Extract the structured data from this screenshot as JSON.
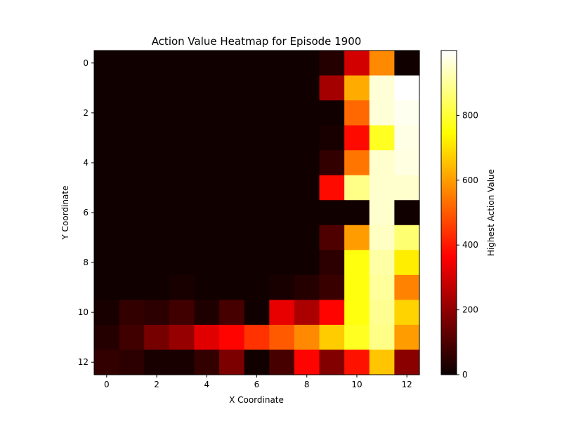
{
  "chart_data": {
    "type": "heatmap",
    "title": "Action Value Heatmap for Episode 1900",
    "xlabel": "X Coordinate",
    "ylabel": "Y Coordinate",
    "colorbar_label": "Highest Action Value",
    "colormap": "hot",
    "vmin": 0,
    "vmax": 1000,
    "x_ticks": [
      0,
      2,
      4,
      6,
      8,
      10,
      12
    ],
    "y_ticks": [
      0,
      2,
      4,
      6,
      8,
      10,
      12
    ],
    "colorbar_ticks": [
      0,
      200,
      400,
      600,
      800
    ],
    "grid": false,
    "rows": 13,
    "cols": 13,
    "values": [
      [
        10,
        10,
        10,
        10,
        10,
        10,
        10,
        10,
        10,
        40,
        300,
        570,
        10
      ],
      [
        10,
        10,
        10,
        10,
        10,
        10,
        10,
        10,
        10,
        230,
        620,
        960,
        1000
      ],
      [
        10,
        10,
        10,
        10,
        10,
        10,
        10,
        10,
        10,
        10,
        520,
        960,
        985
      ],
      [
        10,
        10,
        10,
        10,
        10,
        10,
        10,
        10,
        10,
        20,
        380,
        780,
        975
      ],
      [
        10,
        10,
        10,
        10,
        10,
        10,
        10,
        10,
        10,
        60,
        540,
        950,
        970
      ],
      [
        10,
        10,
        10,
        10,
        10,
        10,
        10,
        10,
        10,
        380,
        880,
        950,
        950
      ],
      [
        10,
        10,
        10,
        10,
        10,
        10,
        10,
        10,
        10,
        10,
        10,
        950,
        10
      ],
      [
        10,
        10,
        10,
        10,
        10,
        10,
        10,
        10,
        10,
        100,
        600,
        940,
        860
      ],
      [
        10,
        10,
        10,
        10,
        10,
        10,
        10,
        10,
        10,
        50,
        760,
        910,
        720
      ],
      [
        10,
        10,
        10,
        20,
        10,
        10,
        10,
        20,
        40,
        70,
        760,
        900,
        560
      ],
      [
        20,
        60,
        50,
        80,
        30,
        90,
        10,
        330,
        240,
        370,
        760,
        890,
        680
      ],
      [
        40,
        80,
        160,
        210,
        320,
        370,
        440,
        500,
        570,
        670,
        780,
        880,
        600
      ],
      [
        60,
        50,
        20,
        20,
        60,
        170,
        10,
        90,
        370,
        180,
        390,
        660,
        190
      ]
    ]
  }
}
